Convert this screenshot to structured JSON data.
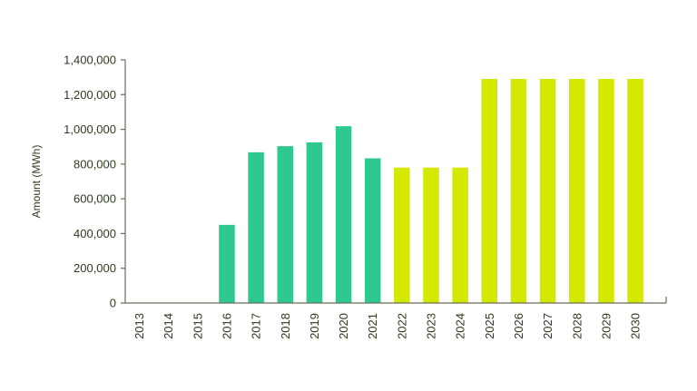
{
  "chart_data": {
    "type": "bar",
    "title": "",
    "xlabel": "",
    "ylabel": "Amount (MWh)",
    "ylim": [
      0,
      1400000
    ],
    "yticks": [
      0,
      200000,
      400000,
      600000,
      800000,
      1000000,
      1200000,
      1400000
    ],
    "ytick_labels": [
      "0",
      "200,000",
      "400,000",
      "600,000",
      "800,000",
      "1,000,000",
      "1,200,000",
      "1,400,000"
    ],
    "grid": false,
    "categories": [
      "2013",
      "2014",
      "2015",
      "2016",
      "2017",
      "2018",
      "2019",
      "2020",
      "2021",
      "2022",
      "2023",
      "2024",
      "2025",
      "2026",
      "2027",
      "2028",
      "2029",
      "2030"
    ],
    "values": [
      0,
      0,
      0,
      450000,
      868000,
      903000,
      925000,
      1018000,
      833000,
      780000,
      780000,
      780000,
      1290000,
      1290000,
      1290000,
      1290000,
      1290000,
      1290000
    ],
    "bar_colors": [
      "#2dc98f",
      "#2dc98f",
      "#2dc98f",
      "#2dc98f",
      "#2dc98f",
      "#2dc98f",
      "#2dc98f",
      "#2dc98f",
      "#2dc98f",
      "#d4e800",
      "#d4e800",
      "#d4e800",
      "#d4e800",
      "#d4e800",
      "#d4e800",
      "#d4e800",
      "#d4e800",
      "#d4e800"
    ]
  }
}
